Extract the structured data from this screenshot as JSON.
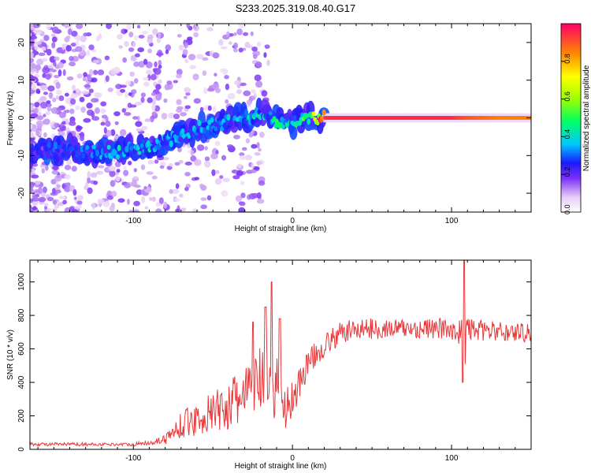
{
  "figure": {
    "title": "S233.2025.319.08.40.G17"
  },
  "colors": {
    "line": "#e8373a",
    "axis": "#000000",
    "background": "#ffffff"
  },
  "chart_data": [
    {
      "type": "heatmap",
      "title": "",
      "xlabel": "Height of straight line (km)",
      "ylabel": "Frequency (Hz)",
      "xlim": [
        -165,
        150
      ],
      "ylim": [
        -25,
        25
      ],
      "xticks": [
        -100,
        0,
        100
      ],
      "yticks": [
        -20,
        -10,
        0,
        10,
        20
      ],
      "colorbar": {
        "label": "Normalized spectral amplitude",
        "range": [
          0,
          1
        ],
        "ticks": [
          0.0,
          0.2,
          0.4,
          0.6,
          0.8
        ],
        "tick_labels": [
          "0.0",
          "0.2",
          "0.4",
          "0.6",
          "0.8"
        ]
      },
      "ridge": {
        "description": "Dominant frequency ridge (Hz) vs height (km), amplitude 0-1",
        "x": [
          -165,
          -150,
          -135,
          -120,
          -110,
          -100,
          -90,
          -80,
          -70,
          -60,
          -50,
          -40,
          -30,
          -20,
          -15,
          -10,
          -5,
          0,
          10,
          20,
          40,
          60,
          80,
          100,
          110,
          130,
          150
        ],
        "freq": [
          -9,
          -8.5,
          -8.5,
          -9.5,
          -9,
          -8,
          -7.5,
          -6,
          -5,
          -3,
          -2,
          -1,
          0,
          1,
          1,
          -1,
          -1.5,
          -1.5,
          0,
          0,
          0,
          0,
          0,
          0,
          0,
          0,
          0
        ],
        "amplitude": [
          0.2,
          0.25,
          0.25,
          0.3,
          0.35,
          0.3,
          0.35,
          0.3,
          0.3,
          0.3,
          0.3,
          0.32,
          0.35,
          0.35,
          0.35,
          0.4,
          0.35,
          0.4,
          0.5,
          0.95,
          0.95,
          0.95,
          0.95,
          0.95,
          0.9,
          0.85,
          0.85
        ]
      }
    },
    {
      "type": "line",
      "title": "",
      "xlabel": "Height of straight line (km)",
      "ylabel": "SNR (10 * v/v)",
      "xlim": [
        -165,
        150
      ],
      "ylim": [
        0,
        1130
      ],
      "xticks": [
        -100,
        0,
        100
      ],
      "yticks": [
        0,
        200,
        400,
        600,
        800,
        1000
      ],
      "series": [
        {
          "name": "SNR",
          "x": [
            -165,
            -150,
            -130,
            -110,
            -100,
            -90,
            -80,
            -75,
            -70,
            -60,
            -50,
            -40,
            -30,
            -25,
            -20,
            -15,
            -12,
            -10,
            -5,
            0,
            10,
            20,
            30,
            40,
            60,
            80,
            100,
            105,
            108,
            110,
            120,
            135,
            150
          ],
          "values": [
            30,
            30,
            30,
            30,
            30,
            40,
            60,
            100,
            150,
            180,
            220,
            260,
            320,
            360,
            420,
            360,
            250,
            450,
            250,
            300,
            520,
            620,
            690,
            720,
            720,
            720,
            720,
            700,
            650,
            720,
            710,
            700,
            700
          ],
          "noise": [
            10,
            10,
            10,
            8,
            10,
            15,
            30,
            50,
            80,
            100,
            120,
            150,
            180,
            200,
            200,
            200,
            150,
            250,
            150,
            120,
            80,
            70,
            70,
            65,
            60,
            60,
            65,
            80,
            300,
            70,
            60,
            60,
            60
          ],
          "spikes": [
            {
              "x": -25,
              "value": 760
            },
            {
              "x": -13,
              "value": 1000
            },
            {
              "x": -17,
              "value": 850
            },
            {
              "x": 108,
              "value": 1130
            },
            {
              "x": 107,
              "value": 400
            },
            {
              "x": -8,
              "value": 780
            }
          ]
        }
      ]
    }
  ]
}
